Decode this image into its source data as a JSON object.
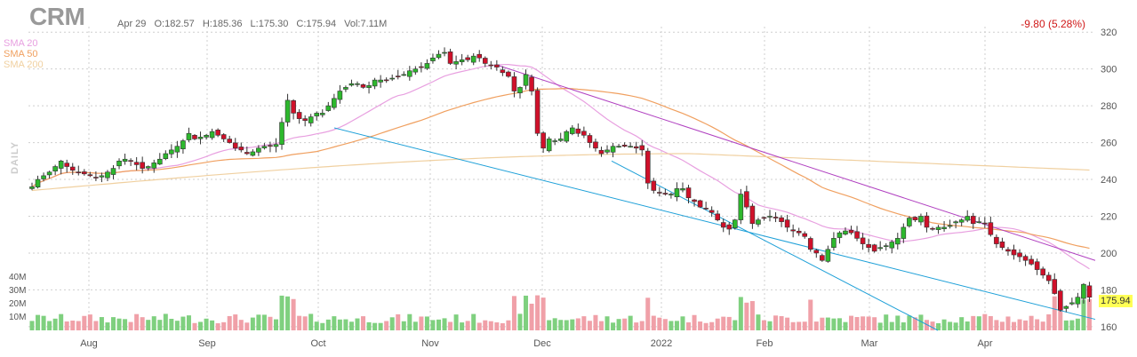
{
  "header": {
    "ticker": "CRM",
    "date": "Apr 29",
    "open": "O:182.57",
    "high": "H:185.36",
    "low": "L:175.30",
    "close": "C:175.94",
    "volume": "Vol:7.11M",
    "change": "-9.80 (5.28%)",
    "period": "DAILY",
    "last_price": "175.94"
  },
  "sma_legend": [
    {
      "label": "SMA 20",
      "color": "#e8a0e0"
    },
    {
      "label": "SMA 50",
      "color": "#f0a060"
    },
    {
      "label": "SMA 200",
      "color": "#f0d0a0"
    }
  ],
  "colors": {
    "up": "#2db82d",
    "down": "#d0102a",
    "volume": "#7fd07f",
    "volume_down": "#f0a0a8",
    "trendline_blue": "#1ea0d8",
    "trendline_purple": "#b040c0"
  },
  "volume_labels": [
    "40M",
    "30M",
    "20M",
    "10M"
  ],
  "chart_data": {
    "type": "candlestick",
    "title": "CRM",
    "x_ticks": [
      "Aug",
      "Sep",
      "Oct",
      "Nov",
      "Dec",
      "2022",
      "Feb",
      "Mar",
      "Apr"
    ],
    "y_ticks": [
      160,
      180,
      200,
      220,
      240,
      260,
      280,
      300,
      320
    ],
    "ylim": [
      158,
      323
    ],
    "volume_range": [
      0,
      45
    ],
    "last_candle": {
      "date": "Apr 29",
      "open": 182.57,
      "high": 185.36,
      "low": 175.3,
      "close": 175.94,
      "volume_m": 7.11
    },
    "close_series": [
      236,
      240,
      242,
      244,
      247,
      250,
      247,
      245,
      244,
      243,
      242,
      241,
      242,
      244,
      246,
      250,
      251,
      250,
      248,
      246,
      247,
      249,
      251,
      254,
      256,
      258,
      261,
      265,
      262,
      263,
      264,
      266,
      264,
      262,
      260,
      257,
      256,
      254,
      255,
      257,
      258,
      258,
      259,
      271,
      283,
      276,
      273,
      272,
      274,
      276,
      276,
      280,
      284,
      288,
      290,
      292,
      292,
      290,
      291,
      294,
      294,
      294,
      295,
      296,
      297,
      299,
      300,
      301,
      303,
      306,
      308,
      309,
      303,
      304,
      305,
      305,
      307,
      306,
      303,
      302,
      301,
      298,
      296,
      288,
      290,
      297,
      288,
      265,
      257,
      262,
      261,
      262,
      266,
      268,
      265,
      264,
      260,
      257,
      254,
      256,
      258,
      258,
      258,
      258,
      257,
      256,
      238,
      234,
      233,
      232,
      232,
      235,
      235,
      230,
      228,
      225,
      224,
      222,
      218,
      214,
      213,
      218,
      232,
      225,
      216,
      218,
      219,
      220,
      219,
      217,
      214,
      212,
      211,
      209,
      202,
      200,
      196,
      202,
      208,
      211,
      212,
      211,
      208,
      205,
      203,
      201,
      203,
      204,
      206,
      208,
      214,
      219,
      218,
      220,
      214,
      213,
      214,
      214,
      215,
      217,
      218,
      220,
      216,
      217,
      216,
      210,
      205,
      203,
      201,
      199,
      198,
      196,
      194,
      191,
      188,
      185,
      178,
      169,
      171,
      173,
      176,
      183,
      176
    ],
    "series": [
      {
        "name": "SMA 20",
        "x_end_values": [
          {
            "at": "Aug",
            "y": 240
          },
          {
            "at": "Nov",
            "y": 290
          },
          {
            "at": "Dec",
            "y": 298
          },
          {
            "at": "2022",
            "y": 262
          },
          {
            "at": "Feb",
            "y": 228
          },
          {
            "at": "Mar",
            "y": 210
          },
          {
            "at": "Apr",
            "y": 212
          },
          {
            "at": "end",
            "y": 190
          }
        ]
      },
      {
        "name": "SMA 50",
        "x_end_values": [
          {
            "at": "Aug",
            "y": 236
          },
          {
            "at": "Oct",
            "y": 258
          },
          {
            "at": "Nov",
            "y": 278
          },
          {
            "at": "Dec",
            "y": 294
          },
          {
            "at": "2022",
            "y": 282
          },
          {
            "at": "Feb",
            "y": 248
          },
          {
            "at": "Mar",
            "y": 225
          },
          {
            "at": "Apr",
            "y": 210
          },
          {
            "at": "end",
            "y": 200
          }
        ]
      },
      {
        "name": "SMA 200",
        "x_end_values": [
          {
            "at": "Aug",
            "y": 234
          },
          {
            "at": "Oct",
            "y": 236
          },
          {
            "at": "Nov",
            "y": 244
          },
          {
            "at": "Dec",
            "y": 248
          },
          {
            "at": "2022",
            "y": 252
          },
          {
            "at": "Feb",
            "y": 254
          },
          {
            "at": "Mar",
            "y": 253
          },
          {
            "at": "Apr",
            "y": 250
          },
          {
            "at": "end",
            "y": 245
          }
        ]
      }
    ],
    "grid": true,
    "legend_position": "top-left"
  }
}
